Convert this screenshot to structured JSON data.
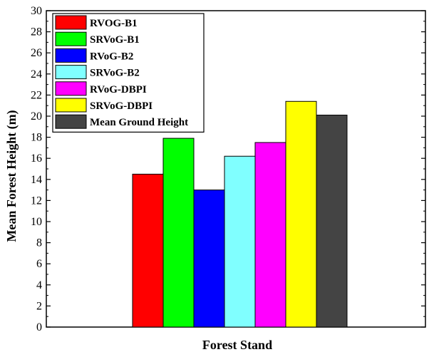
{
  "chart_data": {
    "type": "bar",
    "xlabel": "Forest Stand",
    "ylabel": "Mean Forest Height (m)",
    "ylim": [
      0,
      30
    ],
    "y_ticks": [
      0,
      2,
      4,
      6,
      8,
      10,
      12,
      14,
      16,
      18,
      20,
      22,
      24,
      26,
      28,
      30
    ],
    "categories": [
      "Forest Stand"
    ],
    "legend_position": "top-left",
    "grid": false,
    "series": [
      {
        "name": "RVOG-B1",
        "values": [
          14.5
        ],
        "color": "#ff0000"
      },
      {
        "name": "SRVoG-B1",
        "values": [
          17.9
        ],
        "color": "#00ff00"
      },
      {
        "name": "RVoG-B2",
        "values": [
          13.0
        ],
        "color": "#0000ff"
      },
      {
        "name": "SRVoG-B2",
        "values": [
          16.2
        ],
        "color": "#80ffff"
      },
      {
        "name": "RVoG-DBPI",
        "values": [
          17.5
        ],
        "color": "#ff00ff"
      },
      {
        "name": "SRVoG-DBPI",
        "values": [
          21.4
        ],
        "color": "#ffff00"
      },
      {
        "name": "Mean Ground Height",
        "values": [
          20.1
        ],
        "color": "#444444"
      }
    ]
  }
}
